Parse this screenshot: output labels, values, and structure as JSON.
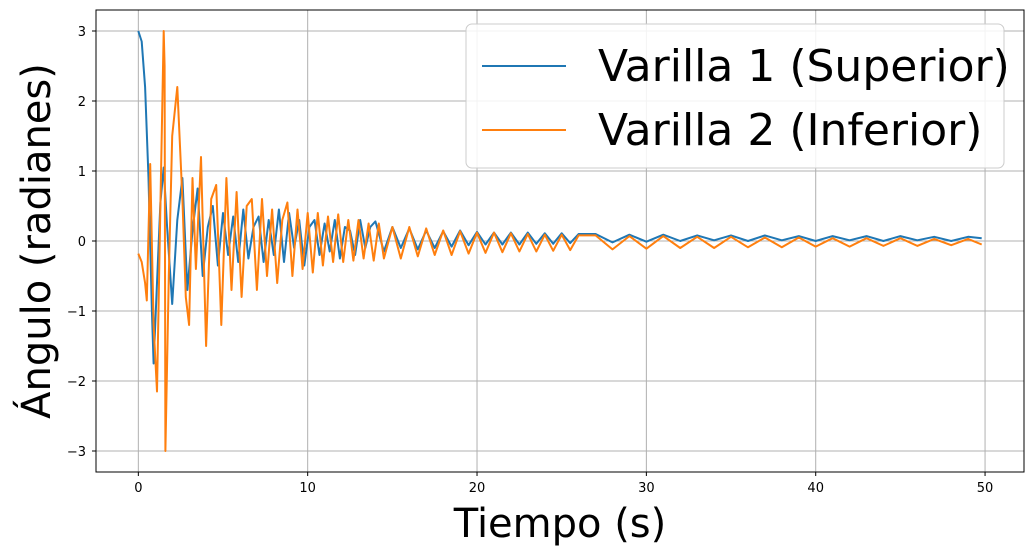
{
  "chart_data": {
    "type": "line",
    "title": "",
    "xlabel": "Tiempo (s)",
    "ylabel": "Ángulo (radianes)",
    "xlim": [
      -2.5,
      52.3
    ],
    "ylim": [
      -3.3,
      3.3
    ],
    "xticks": [
      0,
      10,
      20,
      30,
      40,
      50
    ],
    "xtick_labels": [
      "0",
      "10",
      "20",
      "30",
      "40",
      "50"
    ],
    "yticks": [
      -3,
      -2,
      -1,
      0,
      1,
      2,
      3
    ],
    "ytick_labels": [
      "−3",
      "−2",
      "−1",
      "0",
      "1",
      "2",
      "3"
    ],
    "grid": true,
    "legend_position": "top-right",
    "series": [
      {
        "name": "Varilla 1 (Superior)",
        "color": "#1f77b4",
        "x": [
          0,
          0.2,
          0.4,
          0.6,
          0.8,
          0.9,
          1.1,
          1.3,
          1.5,
          1.7,
          2.0,
          2.3,
          2.6,
          2.9,
          3.2,
          3.5,
          3.8,
          4.1,
          4.4,
          4.7,
          5.0,
          5.3,
          5.6,
          5.9,
          6.2,
          6.5,
          6.8,
          7.1,
          7.4,
          7.7,
          8.0,
          8.3,
          8.6,
          8.9,
          9.2,
          9.5,
          9.8,
          10.1,
          10.4,
          10.7,
          11.0,
          11.3,
          11.6,
          11.9,
          12.2,
          12.5,
          12.8,
          13.1,
          13.4,
          13.7,
          14.0,
          14.5,
          15.0,
          15.5,
          16.0,
          16.5,
          17.0,
          17.5,
          18.0,
          18.5,
          19.0,
          19.5,
          20.0,
          20.5,
          21.0,
          21.5,
          22.0,
          22.5,
          23.0,
          23.5,
          24.0,
          24.5,
          25.0,
          25.5,
          26.0,
          27.0,
          28.0,
          29.0,
          30.0,
          31.0,
          32.0,
          33.0,
          34.0,
          35.0,
          36.0,
          37.0,
          38.0,
          39.0,
          40.0,
          41.0,
          42.0,
          43.0,
          44.0,
          45.0,
          46.0,
          47.0,
          48.0,
          49.0,
          49.8
        ],
        "y": [
          3.0,
          2.85,
          2.2,
          0.9,
          -1.0,
          -1.75,
          -0.6,
          0.55,
          1.05,
          0.2,
          -0.9,
          0.3,
          0.9,
          -0.7,
          0.15,
          0.75,
          -0.5,
          0.2,
          0.5,
          -0.35,
          0.4,
          -0.2,
          0.35,
          -0.3,
          0.45,
          -0.25,
          0.2,
          0.35,
          -0.3,
          0.3,
          -0.2,
          0.45,
          -0.3,
          0.4,
          -0.1,
          0.3,
          -0.35,
          0.2,
          0.3,
          -0.2,
          0.25,
          -0.15,
          0.3,
          -0.25,
          0.2,
          0.15,
          -0.2,
          0.3,
          -0.1,
          0.2,
          0.28,
          -0.15,
          0.2,
          -0.1,
          0.18,
          -0.12,
          0.15,
          -0.1,
          0.14,
          -0.08,
          0.15,
          -0.06,
          0.13,
          -0.05,
          0.12,
          -0.05,
          0.12,
          -0.05,
          0.12,
          -0.04,
          0.11,
          -0.04,
          0.11,
          -0.03,
          0.1,
          0.1,
          -0.02,
          0.09,
          -0.01,
          0.09,
          0.0,
          0.08,
          0.01,
          0.08,
          0.0,
          0.08,
          0.01,
          0.07,
          0.0,
          0.07,
          0.01,
          0.07,
          0.0,
          0.07,
          0.01,
          0.06,
          0.0,
          0.06,
          0.04
        ]
      },
      {
        "name": "Varilla 2 (Inferior)",
        "color": "#ff7f0e",
        "x": [
          0,
          0.2,
          0.4,
          0.5,
          0.7,
          0.9,
          1.1,
          1.3,
          1.5,
          1.55,
          1.6,
          1.8,
          2.0,
          2.3,
          2.6,
          2.8,
          3.0,
          3.2,
          3.4,
          3.7,
          4.0,
          4.3,
          4.6,
          4.9,
          5.2,
          5.5,
          5.8,
          6.1,
          6.4,
          6.7,
          7.0,
          7.3,
          7.6,
          7.9,
          8.2,
          8.5,
          8.8,
          9.1,
          9.4,
          9.7,
          10.0,
          10.3,
          10.6,
          10.9,
          11.2,
          11.5,
          11.8,
          12.1,
          12.4,
          12.7,
          13.0,
          13.3,
          13.6,
          13.9,
          14.2,
          14.5,
          15.0,
          15.5,
          16.0,
          16.5,
          17.0,
          17.5,
          18.0,
          18.5,
          19.0,
          19.5,
          20.0,
          20.5,
          21.0,
          21.5,
          22.0,
          22.5,
          23.0,
          23.5,
          24.0,
          24.5,
          25.0,
          25.5,
          26.0,
          27.0,
          28.0,
          29.0,
          30.0,
          31.0,
          32.0,
          33.0,
          34.0,
          35.0,
          36.0,
          37.0,
          38.0,
          39.0,
          40.0,
          41.0,
          42.0,
          43.0,
          44.0,
          45.0,
          46.0,
          47.0,
          48.0,
          49.0,
          49.8
        ],
        "y": [
          -0.18,
          -0.3,
          -0.6,
          -0.85,
          1.1,
          -1.2,
          -2.15,
          0.5,
          3.0,
          2.5,
          -3.0,
          -0.5,
          1.5,
          2.2,
          0.6,
          -0.8,
          -1.2,
          0.9,
          -0.4,
          1.2,
          -1.5,
          0.6,
          0.8,
          -1.2,
          0.9,
          -0.7,
          0.7,
          -0.8,
          0.5,
          0.6,
          -0.7,
          0.6,
          -0.5,
          0.45,
          -0.6,
          0.3,
          0.55,
          -0.5,
          0.45,
          -0.4,
          0.4,
          -0.45,
          0.4,
          -0.35,
          0.35,
          -0.3,
          0.38,
          -0.3,
          0.3,
          -0.28,
          0.3,
          -0.25,
          0.25,
          -0.28,
          0.25,
          -0.25,
          0.2,
          -0.25,
          0.2,
          -0.22,
          0.18,
          -0.2,
          0.15,
          -0.2,
          0.14,
          -0.18,
          0.12,
          -0.17,
          0.12,
          -0.16,
          0.11,
          -0.15,
          0.1,
          -0.15,
          0.09,
          -0.14,
          0.09,
          -0.13,
          0.08,
          0.08,
          -0.12,
          0.07,
          -0.11,
          0.07,
          -0.1,
          0.06,
          -0.1,
          0.06,
          -0.09,
          0.05,
          -0.09,
          0.05,
          -0.08,
          0.04,
          -0.08,
          0.04,
          -0.07,
          0.04,
          -0.07,
          0.03,
          -0.06,
          0.03,
          -0.05
        ]
      }
    ]
  }
}
